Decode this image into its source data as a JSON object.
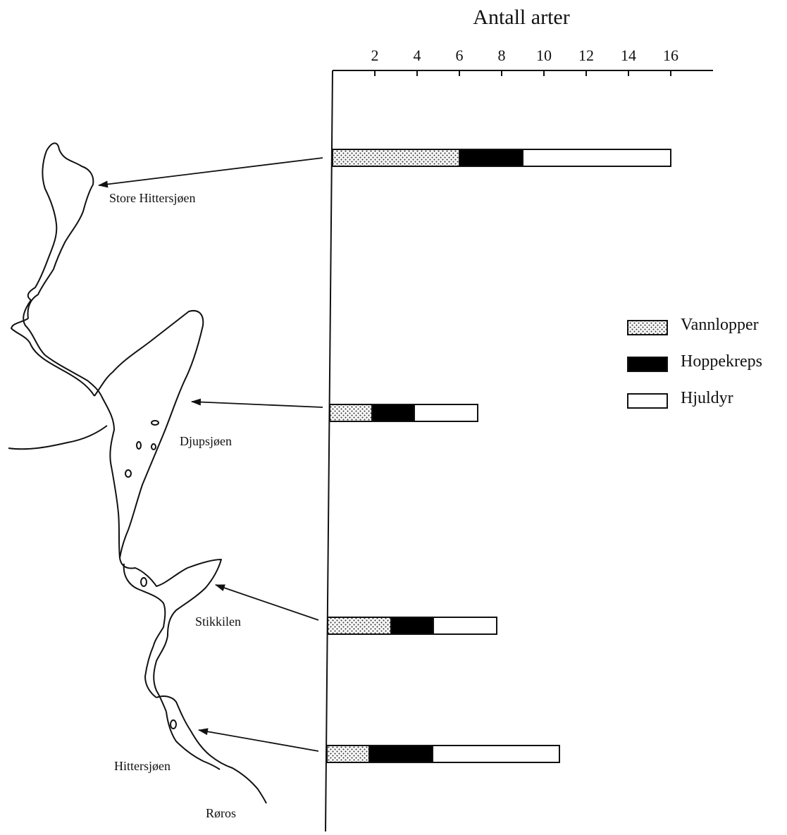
{
  "chart_data": {
    "type": "bar",
    "orientation": "horizontal",
    "stacked": true,
    "title": "Antall arter",
    "xlim": [
      0,
      18
    ],
    "x_ticks": [
      2,
      4,
      6,
      8,
      10,
      12,
      14,
      16
    ],
    "categories": [
      "Store Hittersjøen",
      "Djupsjøen",
      "Stikkilen",
      "Hittersjøen"
    ],
    "series": [
      {
        "name": "Vannlopper",
        "pattern": "dotted",
        "values": [
          6,
          2,
          3,
          2
        ]
      },
      {
        "name": "Hoppekreps",
        "color": "#000000",
        "values": [
          3,
          2,
          2,
          3
        ]
      },
      {
        "name": "Hjuldyr",
        "color": "#ffffff",
        "values": [
          7,
          3,
          3,
          6
        ]
      }
    ],
    "legend": "right",
    "grid": false
  },
  "map_labels": {
    "store_hittersjoen": "Store Hittersjøen",
    "djupsjoen": "Djupsjøen",
    "stikkilen": "Stikkilen",
    "hittersjoen": "Hittersjøen",
    "roros": "Røros"
  }
}
